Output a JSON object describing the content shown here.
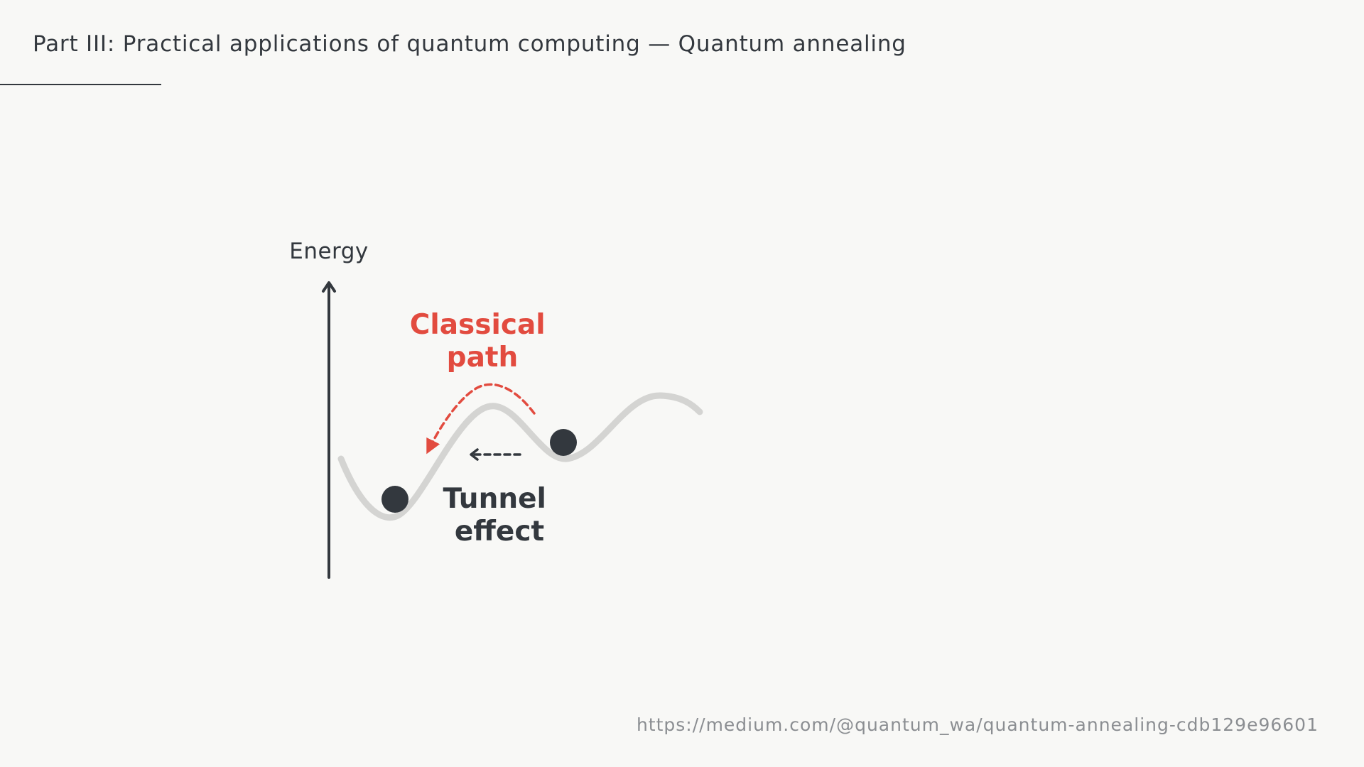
{
  "slide": {
    "title": "Part III: Practical applications of quantum computing — Quantum annealing",
    "source_url": "https://medium.com/@quantum_wa/quantum-annealing-cdb129e96601"
  },
  "diagram": {
    "axis_label": "Energy",
    "classical_path_label": [
      "Classical",
      "path"
    ],
    "tunnel_effect_label": [
      "Tunnel",
      "effect"
    ]
  },
  "colors": {
    "background": "#f8f8f6",
    "ink": "#33383e",
    "curve": "#d4d4d2",
    "classical_accent": "#e24b3f",
    "url_gray": "#8b8e92"
  },
  "icons": {
    "axis_arrow": "up-arrow-icon",
    "tunnel_arrow": "left-arrow-icon",
    "classical_arrow": "curved-arrow-icon"
  }
}
